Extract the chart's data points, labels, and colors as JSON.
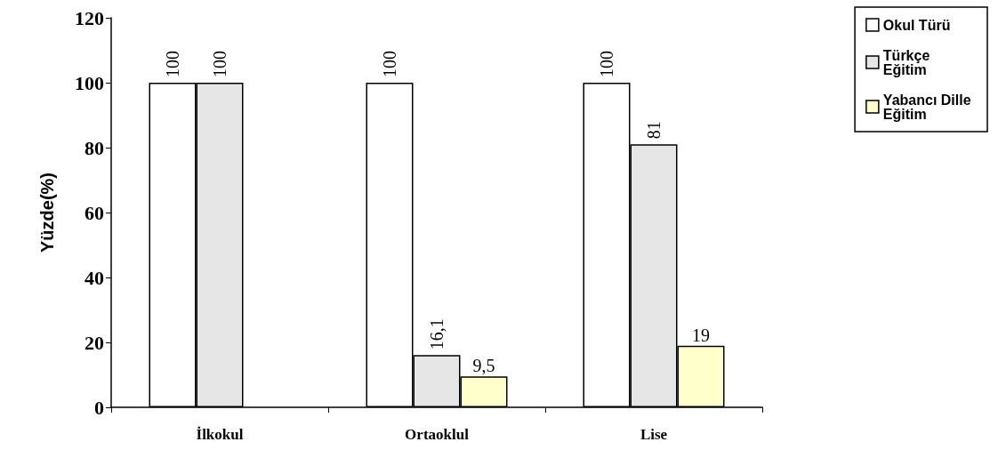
{
  "chart_data": {
    "type": "bar",
    "ylabel": "Yüzde(%)",
    "categories": [
      "İlkokul",
      "Ortaoklul",
      "Lise"
    ],
    "series": [
      {
        "name": "Okul Türü",
        "color": "#ffffff",
        "values": [
          100,
          100,
          100
        ],
        "value_labels": [
          "100",
          "100",
          "100"
        ]
      },
      {
        "name": "Türkçe Eğitim",
        "color": "#e6e6e6",
        "values": [
          100,
          16.1,
          81
        ],
        "value_labels": [
          "100",
          "16,1",
          "81"
        ]
      },
      {
        "name": "Yabancı Dille Eğitim",
        "color": "#ffffcc",
        "values": [
          null,
          9.5,
          19
        ],
        "value_labels": [
          null,
          "9,5",
          "19"
        ]
      }
    ],
    "ylim": [
      0,
      120
    ],
    "yticks": [
      0,
      20,
      40,
      60,
      80,
      100,
      120
    ],
    "grid": false,
    "legend": "top right"
  }
}
